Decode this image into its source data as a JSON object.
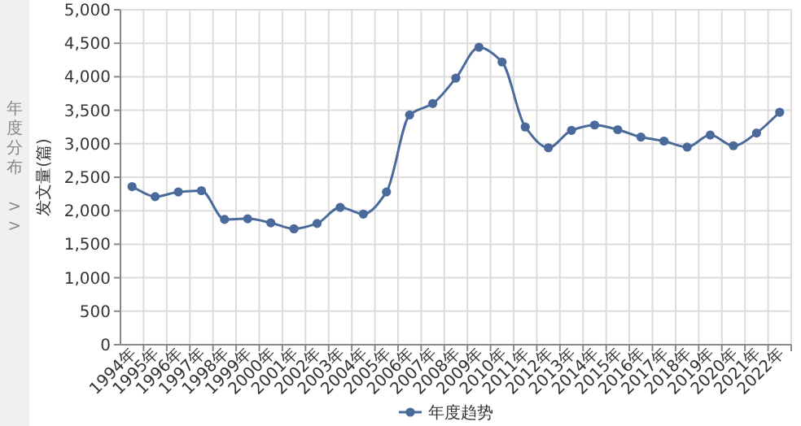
{
  "chart_data": {
    "type": "line",
    "ylabel": "发文量(篇)",
    "annotations": [
      "年度分布 >>"
    ],
    "categories": [
      "1994年",
      "1995年",
      "1996年",
      "1997年",
      "1998年",
      "1999年",
      "2000年",
      "2001年",
      "2002年",
      "2003年",
      "2004年",
      "2005年",
      "2006年",
      "2007年",
      "2008年",
      "2009年",
      "2010年",
      "2011年",
      "2012年",
      "2013年",
      "2014年",
      "2015年",
      "2016年",
      "2017年",
      "2018年",
      "2019年",
      "2020年",
      "2021年",
      "2022年"
    ],
    "series": [
      {
        "name": "年度趋势",
        "color": "#4a6a9b",
        "values": [
          2360,
          2210,
          2280,
          2300,
          1870,
          1880,
          1820,
          1730,
          1810,
          2050,
          1950,
          2280,
          3430,
          3600,
          3980,
          4440,
          4220,
          3250,
          2940,
          3200,
          3280,
          3210,
          3100,
          3040,
          2950,
          3130,
          2970,
          3160,
          3470
        ]
      }
    ],
    "ylim": [
      0,
      5000
    ],
    "yticks": [
      0,
      500,
      {
        "value": 1000,
        "label": "1,000"
      },
      {
        "value": 1500,
        "label": "1,500"
      },
      {
        "value": 2000,
        "label": "2,000"
      },
      {
        "value": 2500,
        "label": "2,500"
      },
      {
        "value": 3000,
        "label": "3,000"
      },
      {
        "value": 3500,
        "label": "3,500"
      },
      {
        "value": 4000,
        "label": "4,000"
      },
      {
        "value": 4500,
        "label": "4,500"
      },
      {
        "value": 5000,
        "label": "5,000"
      }
    ],
    "grid": true,
    "legend": "bottom",
    "marker": "circle",
    "line_style": "solid"
  }
}
